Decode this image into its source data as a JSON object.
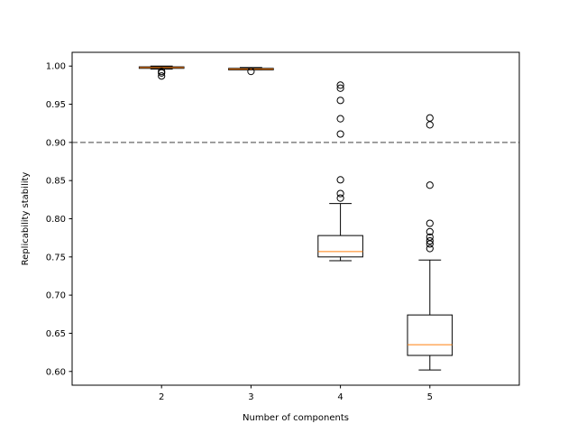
{
  "chart_data": {
    "type": "box",
    "xlabel": "Number of components",
    "ylabel": "Replicability stability",
    "ylim": [
      0.582,
      1.018
    ],
    "yticks": [
      0.6,
      0.65,
      0.7,
      0.75,
      0.8,
      0.85,
      0.9,
      0.95,
      1.0
    ],
    "ytick_labels": [
      "0.60",
      "0.65",
      "0.70",
      "0.75",
      "0.80",
      "0.85",
      "0.90",
      "0.95",
      "1.00"
    ],
    "categories": [
      "2",
      "3",
      "4",
      "5"
    ],
    "reference_line": {
      "y": 0.9,
      "style": "dashed",
      "color": "#808080"
    },
    "grid": false,
    "colors": {
      "box": "#000000",
      "median": "#ff7f0e"
    },
    "boxes": [
      {
        "category": "2",
        "whisker_low": 0.996,
        "q1": 0.997,
        "median": 0.998,
        "q3": 0.999,
        "whisker_high": 1.0,
        "outliers": [
          0.993,
          0.991,
          0.987
        ]
      },
      {
        "category": "3",
        "whisker_low": 0.995,
        "q1": 0.995,
        "median": 0.996,
        "q3": 0.997,
        "whisker_high": 0.998,
        "outliers": [
          0.993
        ]
      },
      {
        "category": "4",
        "whisker_low": 0.745,
        "q1": 0.75,
        "median": 0.757,
        "q3": 0.778,
        "whisker_high": 0.82,
        "outliers": [
          0.975,
          0.971,
          0.955,
          0.931,
          0.911,
          0.851,
          0.833,
          0.827
        ]
      },
      {
        "category": "5",
        "whisker_low": 0.602,
        "q1": 0.621,
        "median": 0.635,
        "q3": 0.674,
        "whisker_high": 0.746,
        "outliers": [
          0.932,
          0.923,
          0.844,
          0.794,
          0.783,
          0.776,
          0.771,
          0.767,
          0.761
        ]
      }
    ]
  }
}
